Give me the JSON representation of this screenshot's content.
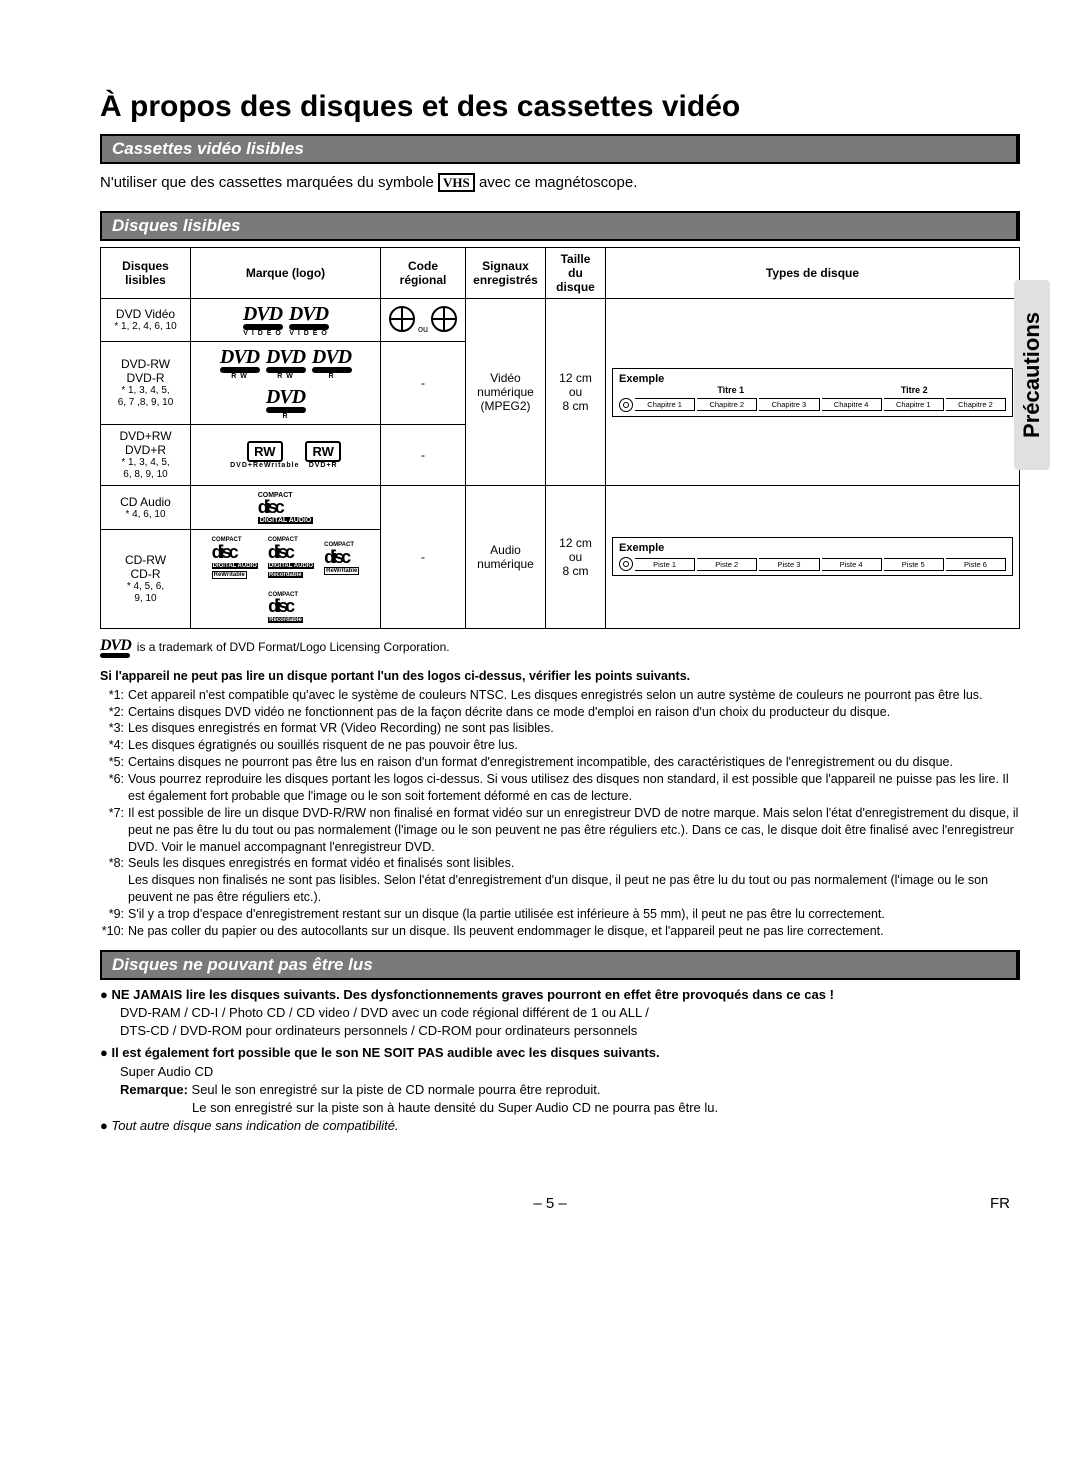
{
  "page": {
    "title": "À propos des disques et des cassettes vidéo",
    "number_label": "– 5 –",
    "lang_code": "FR"
  },
  "sidetab": "Précautions",
  "sec1": {
    "heading": "Cassettes vidéo lisibles",
    "text_before": "N'utiliser que des cassettes marquées du symbole ",
    "vhs": "VHS",
    "text_after": " avec ce magnétoscope."
  },
  "sec2": {
    "heading": "Disques lisibles",
    "th": {
      "c1": "Disques lisibles",
      "c2": "Marque (logo)",
      "c3": "Code régional",
      "c4": "Signaux enregistrés",
      "c5": "Taille du disque",
      "c6": "Types de disque"
    },
    "rows": {
      "r1": {
        "name": "DVD Vidéo",
        "note": "* 1, 2, 4, 6, 10",
        "logo_sub": "V I D E O",
        "region_or": "ou"
      },
      "r2": {
        "name1": "DVD-RW",
        "name2": "DVD-R",
        "note": "* 1, 3, 4, 5,\n6, 7 ,8, 9, 10",
        "dash": "-",
        "rw": "R W",
        "r": "R"
      },
      "r3": {
        "name1": "DVD+RW",
        "name2": "DVD+R",
        "note": "* 1, 3, 4, 5,\n6, 8, 9, 10",
        "dash": "-",
        "rw": "RW",
        "s1": "DVD+ReWritable",
        "s2": "DVD+R"
      },
      "r4": {
        "name": "CD Audio",
        "note": "* 4, 6, 10"
      },
      "r5": {
        "name1": "CD-RW",
        "name2": "CD-R",
        "note": "* 4, 5, 6,\n9, 10",
        "dash": "-"
      }
    },
    "video": {
      "sig": "Vidéo\nnumérique\n(MPEG2)",
      "size": "12 cm\nou\n8 cm"
    },
    "audio": {
      "sig": "Audio\nnumérique",
      "size": "12 cm\nou\n8 cm"
    },
    "ex1": {
      "label": "Exemple",
      "t1": "Titre 1",
      "t2": "Titre 2",
      "ch": [
        "Chapitre 1",
        "Chapitre 2",
        "Chapitre 3",
        "Chapitre 4",
        "Chapitre 1",
        "Chapitre 2"
      ]
    },
    "ex2": {
      "label": "Exemple",
      "tracks": [
        "Piste 1",
        "Piste 2",
        "Piste 3",
        "Piste 4",
        "Piste 5",
        "Piste 6"
      ]
    },
    "compact": "COMPACT",
    "disc_word": "dıƨc",
    "da": "DIGITAL AUDIO",
    "rewr": "ReWritable",
    "reco": "Recordable",
    "trademark": " is a trademark of DVD Format/Logo Licensing Corporation.",
    "troubleshoot_lead": "Si l'appareil ne peut pas lire un disque portant l'un des logos ci-dessus, vérifier les points suivants.",
    "notes": [
      {
        "n": "*1:",
        "t": "Cet appareil n'est compatible qu'avec le système de couleurs NTSC. Les disques enregistrés selon un autre système de couleurs ne pourront pas être lus."
      },
      {
        "n": "*2:",
        "t": "Certains disques DVD vidéo ne fonctionnent pas de la façon décrite dans ce mode d'emploi en raison d'un choix du producteur du disque."
      },
      {
        "n": "*3:",
        "t": "Les disques enregistrés en format VR (Video Recording) ne sont pas lisibles."
      },
      {
        "n": "*4:",
        "t": "Les disques égratignés ou souillés risquent de ne pas pouvoir être lus."
      },
      {
        "n": "*5:",
        "t": "Certains disques ne pourront pas être lus en raison d'un format d'enregistrement incompatible, des caractéristiques de l'enregistrement ou du disque."
      },
      {
        "n": "*6:",
        "t": "Vous pourrez reproduire les disques portant les logos ci-dessus. Si vous utilisez des disques non standard, il est possible que l'appareil ne puisse pas les lire. Il est également fort probable que l'image ou le son soit fortement déformé en cas de lecture."
      },
      {
        "n": "*7:",
        "t": "Il est possible de lire un disque DVD-R/RW non finalisé en format vidéo sur un enregistreur DVD de notre marque. Mais selon l'état d'enregistrement du disque, il peut ne pas être lu du tout ou pas normalement (l'image ou le son peuvent ne pas être réguliers etc.). Dans ce cas, le disque doit être finalisé avec l'enregistreur DVD. Voir le manuel accompagnant l'enregistreur DVD."
      },
      {
        "n": "*8:",
        "t": "Seuls les disques enregistrés en format vidéo et finalisés sont lisibles.\nLes disques non finalisés ne sont pas lisibles. Selon l'état d'enregistrement d'un disque, il peut ne pas être lu du tout ou pas normalement (l'image ou le son peuvent ne pas être réguliers etc.)."
      },
      {
        "n": "*9:",
        "t": "S'il y a trop d'espace d'enregistrement restant sur un disque (la partie utilisée est inférieure à 55 mm), il peut ne pas être lu correctement."
      },
      {
        "n": "*10:",
        "t": "Ne pas coller du papier ou des autocollants sur un disque. Ils peuvent endommager le disque, et l'appareil peut ne pas lire correctement."
      }
    ]
  },
  "sec3": {
    "heading": "Disques ne pouvant pas être lus",
    "l1": "NE JAMAIS lire les disques suivants. Des dysfonctionnements graves pourront en effet être provoqués dans ce cas !",
    "l2": "DVD-RAM / CD-I / Photo CD / CD video / DVD avec un code régional différent de 1 ou ALL /",
    "l3": "DTS-CD / DVD-ROM pour ordinateurs personnels / CD-ROM pour ordinateurs personnels",
    "l4": "Il est également fort possible que le son NE SOIT PAS audible avec les disques suivants.",
    "l5": "Super Audio CD",
    "l6a": "Remarque:",
    "l6b": " Seul le son enregistré sur la piste de CD normale pourra être reproduit.",
    "l7": "Le son enregistré sur la piste son à haute densité du Super Audio CD ne pourra pas être lu.",
    "l8": "Tout autre disque sans indication de compatibilité."
  }
}
